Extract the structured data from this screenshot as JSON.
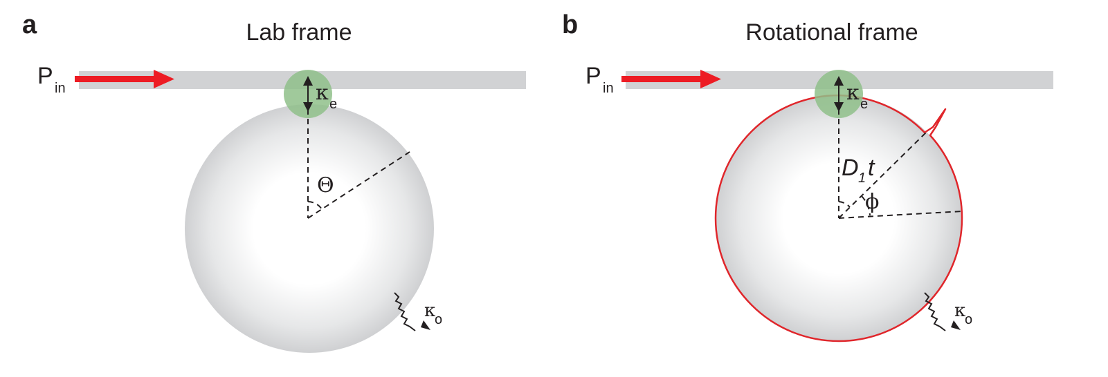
{
  "colors": {
    "waveguide": "#d1d2d4",
    "pump_arrow": "#ed1c24",
    "coupling_region": "#8fbf8a",
    "resonator_edge": "#cfd0d2",
    "soliton_trace": "#e0262b",
    "ink": "#231f20"
  },
  "panels": [
    {
      "letter": "a",
      "title": "Lab frame",
      "input_label": "P",
      "input_sub": "in",
      "coupling_label": "κ",
      "coupling_sub": "e",
      "angle_label": "Θ",
      "loss_label": "κ",
      "loss_sub": "o"
    },
    {
      "letter": "b",
      "title": "Rotational frame",
      "input_label": "P",
      "input_sub": "in",
      "coupling_label": "κ",
      "coupling_sub": "e",
      "rotation_label_main": "D",
      "rotation_label_sub": "1",
      "rotation_label_t": "t",
      "angle_label": "ϕ",
      "loss_label": "κ",
      "loss_sub": "o"
    }
  ]
}
